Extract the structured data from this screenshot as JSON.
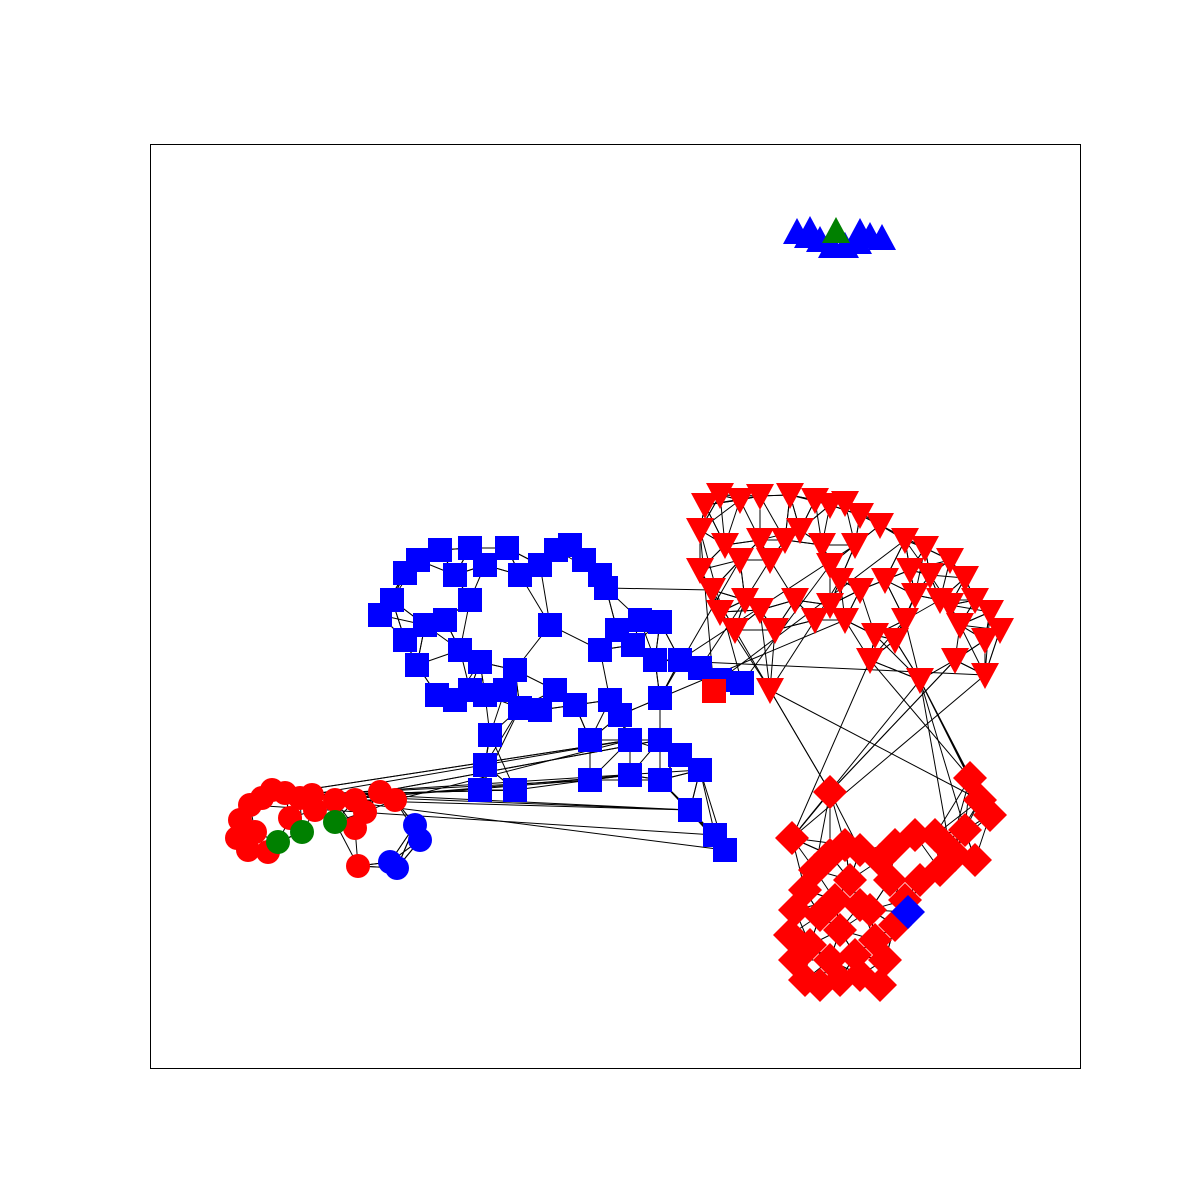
{
  "graph": {
    "colors": {
      "blue": "#0000ff",
      "red": "#ff0000",
      "green": "#008000",
      "edge": "#000000",
      "frame": "#000000"
    },
    "clusters": [
      {
        "name": "triangle-up-cluster",
        "shape": "triangle-up",
        "primary_color": "blue",
        "accent_color": "green",
        "accent_count": 1
      },
      {
        "name": "square-cluster",
        "shape": "square",
        "primary_color": "blue",
        "accent_color": "red",
        "accent_count": 1
      },
      {
        "name": "triangle-down-cluster",
        "shape": "triangle-down",
        "primary_color": "red"
      },
      {
        "name": "diamond-cluster",
        "shape": "diamond",
        "primary_color": "red",
        "accent_color": "blue",
        "accent_count": 1
      },
      {
        "name": "circle-cluster",
        "shape": "circle",
        "primary_color": "red",
        "accent_color": "green",
        "accent_count": 3
      }
    ]
  }
}
